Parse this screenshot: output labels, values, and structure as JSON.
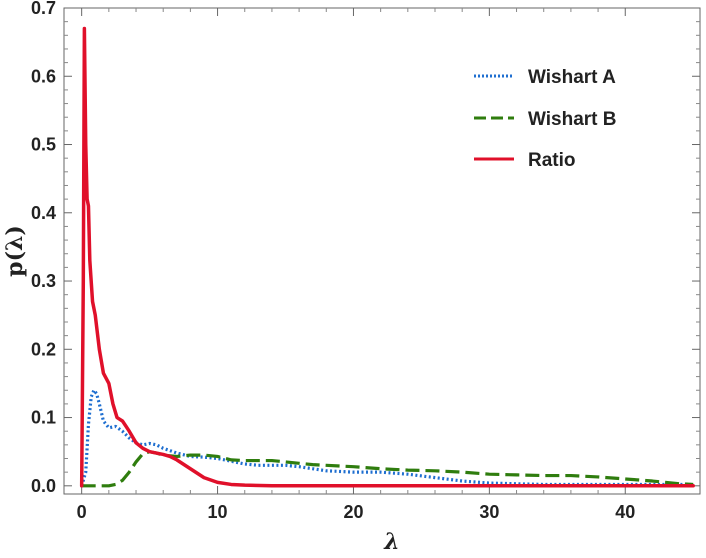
{
  "chart_data": {
    "type": "line",
    "title": "",
    "xlabel": "λ",
    "ylabel": "p(λ)",
    "xlim": [
      -1.3,
      45.5
    ],
    "ylim": [
      -0.012,
      0.7
    ],
    "xticks": [
      0,
      10,
      20,
      30,
      40
    ],
    "yticks": [
      0.0,
      0.1,
      0.2,
      0.3,
      0.4,
      0.5,
      0.6,
      0.7
    ],
    "xtick_labels": [
      "0",
      "10",
      "20",
      "30",
      "40"
    ],
    "ytick_labels": [
      "0.0",
      "0.1",
      "0.2",
      "0.3",
      "0.4",
      "0.5",
      "0.6",
      "0.7"
    ],
    "grid": false,
    "legend_position": "top-right",
    "series": [
      {
        "name": "Wishart A",
        "color": "#1f6fd0",
        "style": "dotted",
        "x": [
          0.0,
          0.3,
          0.5,
          0.7,
          0.9,
          1.1,
          1.3,
          1.6,
          2.0,
          2.5,
          3.0,
          3.5,
          4.0,
          4.5,
          5.0,
          5.5,
          6.0,
          7.0,
          8.0,
          9.0,
          10.0,
          11.0,
          12.0,
          13.0,
          14.0,
          15.0,
          16.0,
          18.0,
          20.0,
          22.0,
          24.0,
          26.0,
          28.0,
          30.0,
          32.0,
          34.0,
          36.0,
          38.0,
          40.0,
          42.0,
          44.0,
          45.0
        ],
        "y": [
          0.0,
          0.02,
          0.09,
          0.13,
          0.14,
          0.135,
          0.12,
          0.095,
          0.085,
          0.087,
          0.08,
          0.07,
          0.063,
          0.06,
          0.062,
          0.06,
          0.055,
          0.048,
          0.043,
          0.042,
          0.04,
          0.036,
          0.032,
          0.03,
          0.03,
          0.03,
          0.028,
          0.022,
          0.02,
          0.02,
          0.017,
          0.012,
          0.007,
          0.004,
          0.003,
          0.002,
          0.002,
          0.002,
          0.002,
          0.002,
          0.002,
          0.002
        ]
      },
      {
        "name": "Wishart B",
        "color": "#2f7d0e",
        "style": "dashed",
        "x": [
          0.0,
          1.0,
          2.0,
          2.5,
          3.0,
          3.5,
          4.0,
          4.5,
          5.0,
          5.5,
          6.0,
          7.0,
          8.0,
          9.0,
          10.0,
          11.0,
          12.0,
          13.0,
          14.0,
          15.0,
          16.0,
          17.0,
          18.0,
          20.0,
          22.0,
          24.0,
          26.0,
          28.0,
          30.0,
          32.0,
          34.0,
          36.0,
          38.0,
          40.0,
          42.0,
          44.0,
          45.0
        ],
        "y": [
          0.0,
          0.0,
          0.0,
          0.002,
          0.008,
          0.02,
          0.035,
          0.047,
          0.05,
          0.048,
          0.045,
          0.043,
          0.045,
          0.045,
          0.043,
          0.038,
          0.037,
          0.037,
          0.037,
          0.035,
          0.033,
          0.031,
          0.03,
          0.028,
          0.025,
          0.023,
          0.022,
          0.02,
          0.017,
          0.016,
          0.015,
          0.015,
          0.013,
          0.01,
          0.007,
          0.003,
          0.002
        ]
      },
      {
        "name": "Ratio",
        "color": "#e0102a",
        "style": "solid",
        "x": [
          0.0,
          0.12,
          0.2,
          0.3,
          0.4,
          0.5,
          0.6,
          0.8,
          1.0,
          1.3,
          1.6,
          2.0,
          2.3,
          2.6,
          3.0,
          3.5,
          4.0,
          4.5,
          5.0,
          5.5,
          6.0,
          6.5,
          7.0,
          8.0,
          9.0,
          10.0,
          11.0,
          12.0,
          14.0,
          16.0,
          20.0,
          25.0,
          30.0,
          35.0,
          40.0,
          45.0
        ],
        "y": [
          0.0,
          0.3,
          0.67,
          0.5,
          0.42,
          0.41,
          0.33,
          0.27,
          0.25,
          0.2,
          0.165,
          0.15,
          0.12,
          0.1,
          0.095,
          0.08,
          0.063,
          0.055,
          0.05,
          0.048,
          0.046,
          0.043,
          0.038,
          0.025,
          0.012,
          0.005,
          0.002,
          0.001,
          0.0,
          0.0,
          0.0,
          0.0,
          0.0,
          0.0,
          0.0,
          0.0
        ]
      }
    ]
  }
}
